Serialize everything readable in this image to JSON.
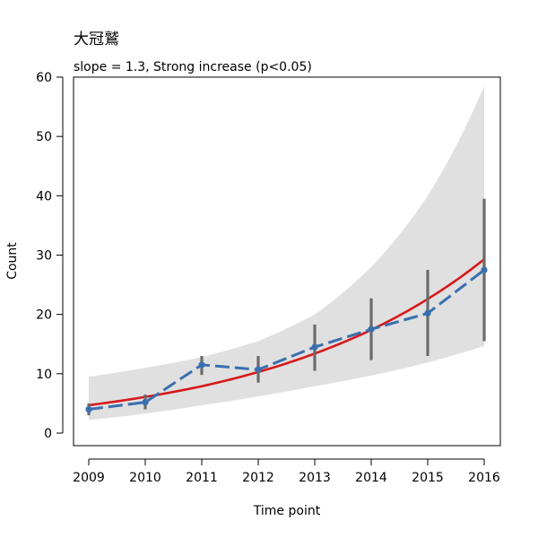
{
  "chart_data": {
    "type": "line",
    "title": "大冠鷲",
    "subtitle": "slope = 1.3, Strong increase (p<0.05)",
    "xlabel": "Time point",
    "ylabel": "Count",
    "x": [
      2009,
      2010,
      2011,
      2012,
      2013,
      2014,
      2015,
      2016
    ],
    "xlim": [
      2009,
      2016
    ],
    "ylim": [
      0,
      60
    ],
    "yticks": [
      0,
      10,
      20,
      30,
      40,
      50,
      60
    ],
    "grid": false,
    "observed": {
      "color": "#3a6faf",
      "values": [
        4.0,
        5.2,
        11.5,
        10.7,
        14.5,
        17.5,
        20.2,
        27.5
      ],
      "error_low": [
        3.0,
        4.0,
        9.8,
        8.5,
        10.5,
        12.3,
        13.0,
        15.5
      ],
      "error_high": [
        5.0,
        6.5,
        13.0,
        13.0,
        18.3,
        22.7,
        27.5,
        39.5
      ],
      "error_color": "#6b6b6b"
    },
    "trend": {
      "color": "#d7191c",
      "values": [
        4.7,
        6.1,
        7.9,
        10.3,
        13.4,
        17.4,
        22.6,
        29.3
      ]
    },
    "confidence_band": {
      "color": "#e0e0e0",
      "lower": [
        2.2,
        3.3,
        4.7,
        6.2,
        7.9,
        9.7,
        11.9,
        14.7
      ],
      "upper": [
        9.5,
        11.0,
        12.8,
        15.5,
        20.0,
        28.0,
        40.0,
        58.5
      ]
    }
  }
}
